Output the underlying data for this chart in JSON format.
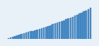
{
  "values": [
    1200,
    1280,
    1350,
    1420,
    1500,
    1580,
    1650,
    1720,
    1800,
    1870,
    1950,
    2020,
    2100,
    2180,
    2260,
    2340,
    2420,
    2500,
    2580,
    2660,
    2750,
    2840,
    2930,
    3020,
    3110,
    3210,
    3310,
    3410,
    3510,
    3620,
    3730,
    3840,
    3960,
    4080,
    4200,
    4330,
    4460,
    4600
  ],
  "bar_color": "#4a8fcc",
  "edge_color": "#2a6090",
  "background_color": "#e8f0f8",
  "ylim_min": 1100,
  "ylim_max": 4700
}
